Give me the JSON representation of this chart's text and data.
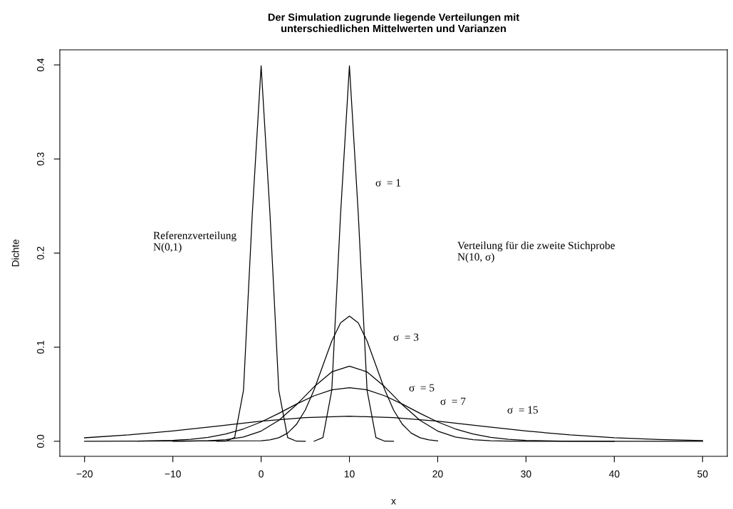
{
  "chart_data": {
    "type": "line",
    "title": "Der Simulation zugrunde liegende Verteilungen mit\nunterschiedlichen Mittelwerten und Varianzen",
    "xlabel": "x",
    "ylabel": "Dichte",
    "x": [
      -5,
      -4,
      -3,
      -2,
      -1,
      0,
      1,
      2,
      3,
      4,
      5
    ],
    "series": [
      {
        "color": "#000000",
        "values": [
          0,
          0.0001,
          0.004,
          0.054,
          0.242,
          0.399,
          0.242,
          0.054,
          0.004,
          0.0001,
          0
        ]
      },
      {
        "color": "#000000",
        "x": [
          6,
          7,
          8,
          9,
          10,
          11,
          12,
          13,
          14,
          15
        ],
        "values": [
          0.0001,
          0.004,
          0.054,
          0.242,
          0.399,
          0.242,
          0.054,
          0.004,
          0.0001,
          0
        ]
      },
      {
        "color": "#000000",
        "x": [
          -20,
          0,
          1,
          2,
          3,
          4,
          5,
          6,
          7,
          8,
          9,
          10,
          11,
          12,
          13,
          14,
          15,
          16,
          17,
          18,
          19,
          20
        ],
        "values": [
          0,
          0.0005,
          0.0015,
          0.0038,
          0.0087,
          0.018,
          0.0332,
          0.0547,
          0.0807,
          0.1065,
          0.1258,
          0.133,
          0.1258,
          0.1065,
          0.0807,
          0.0547,
          0.0332,
          0.018,
          0.0087,
          0.0038,
          0.0015,
          0.0005
        ]
      },
      {
        "color": "#000000",
        "x": [
          -10,
          -8,
          -6,
          -4,
          -2,
          0,
          2,
          4,
          6,
          8,
          10,
          12,
          14,
          16,
          18,
          20,
          22,
          24,
          26,
          28,
          30,
          40,
          50
        ],
        "values": [
          0,
          0.0001,
          0.0005,
          0.0016,
          0.0045,
          0.0108,
          0.0222,
          0.0388,
          0.0579,
          0.0737,
          0.0798,
          0.0737,
          0.0579,
          0.0388,
          0.0222,
          0.0108,
          0.0045,
          0.0016,
          0.0005,
          0.0001,
          0,
          0,
          0
        ]
      },
      {
        "color": "#000000",
        "x": [
          -14,
          -10,
          -8,
          -6,
          -4,
          -2,
          0,
          2,
          4,
          6,
          8,
          10,
          12,
          14,
          16,
          18,
          20,
          22,
          24,
          26,
          28,
          30,
          34,
          40
        ],
        "values": [
          0.0002,
          0.001,
          0.0021,
          0.0042,
          0.0077,
          0.0131,
          0.0205,
          0.0297,
          0.0395,
          0.0483,
          0.0547,
          0.057,
          0.0547,
          0.0483,
          0.0395,
          0.0297,
          0.0205,
          0.0131,
          0.0077,
          0.0042,
          0.0021,
          0.001,
          0.0002,
          0
        ]
      },
      {
        "color": "#000000",
        "x": [
          -20,
          -15,
          -10,
          -5,
          0,
          5,
          10,
          15,
          20,
          25,
          30,
          35,
          40,
          45,
          50
        ],
        "values": [
          0.0037,
          0.0067,
          0.0109,
          0.0161,
          0.0213,
          0.0252,
          0.0266,
          0.0252,
          0.0213,
          0.0161,
          0.0109,
          0.0067,
          0.0037,
          0.0018,
          0.0008
        ]
      }
    ],
    "xlim": [
      -22.8,
      52.8
    ],
    "ylim": [
      -0.016,
      0.416
    ],
    "xticks": [
      {
        "value": -20,
        "label": "−20"
      },
      {
        "value": -10,
        "label": "−10"
      },
      0,
      10,
      20,
      30,
      40,
      50
    ],
    "yticks": [
      {
        "value": 0,
        "label": "0.0"
      },
      0.1,
      0.2,
      0.3,
      0.4
    ],
    "grid": false,
    "legend": false,
    "annotations": [
      "σ  = 1",
      "Referenzverteilung\nN(0,1)",
      "Verteilung für die zweite Stichprobe\nN(10, σ)",
      "σ  = 3",
      "σ  = 5",
      "σ  = 7",
      "σ  = 15"
    ]
  }
}
